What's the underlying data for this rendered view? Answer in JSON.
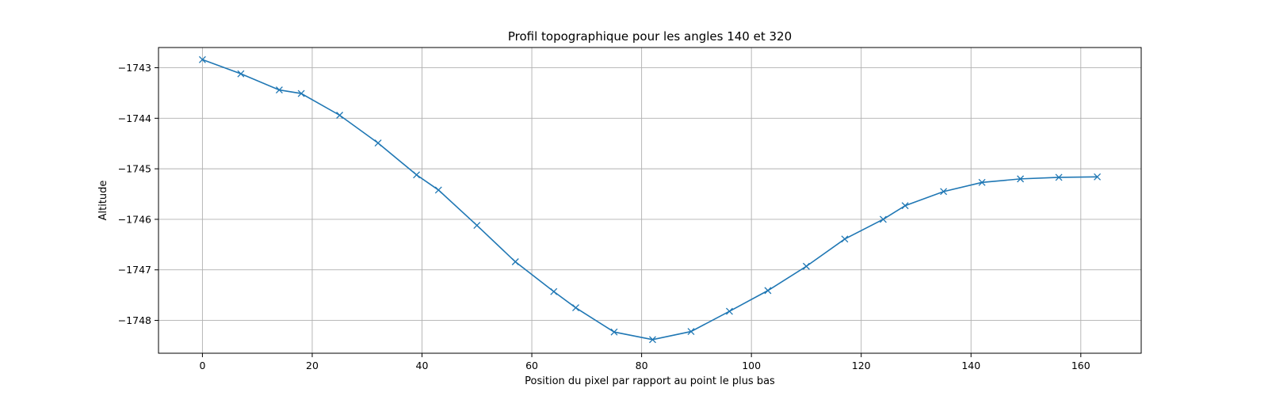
{
  "chart_data": {
    "type": "line",
    "title": "Profil topographique pour les angles 140 et 320",
    "xlabel": "Position du pixel par rapport au point le plus bas",
    "ylabel": "Altitude",
    "xlim": [
      -8,
      171
    ],
    "ylim": [
      -1748.65,
      -1742.6
    ],
    "x_ticks": [
      0,
      20,
      40,
      60,
      80,
      100,
      120,
      140,
      160
    ],
    "x_tick_labels": [
      "0",
      "20",
      "40",
      "60",
      "80",
      "100",
      "120",
      "140",
      "160"
    ],
    "y_ticks": [
      -1743,
      -1744,
      -1745,
      -1746,
      -1747,
      -1748
    ],
    "y_tick_labels": [
      "−1743",
      "−1744",
      "−1745",
      "−1746",
      "−1747",
      "−1748"
    ],
    "grid": true,
    "marker": "x",
    "color": "#1f77b4",
    "series": [
      {
        "x": [
          0,
          7,
          14,
          18,
          25,
          32,
          39,
          43,
          50,
          57,
          64,
          68,
          75,
          82,
          89,
          96,
          103,
          110,
          117,
          124,
          128,
          135,
          142,
          149,
          156,
          163
        ],
        "y": [
          -1742.84,
          -1743.12,
          -1743.44,
          -1743.51,
          -1743.94,
          -1744.49,
          -1745.12,
          -1745.42,
          -1746.12,
          -1746.84,
          -1747.43,
          -1747.75,
          -1748.23,
          -1748.38,
          -1748.22,
          -1747.82,
          -1747.41,
          -1746.93,
          -1746.39,
          -1746.0,
          -1745.73,
          -1745.45,
          -1745.27,
          -1745.2,
          -1745.17,
          -1745.16
        ]
      }
    ]
  }
}
